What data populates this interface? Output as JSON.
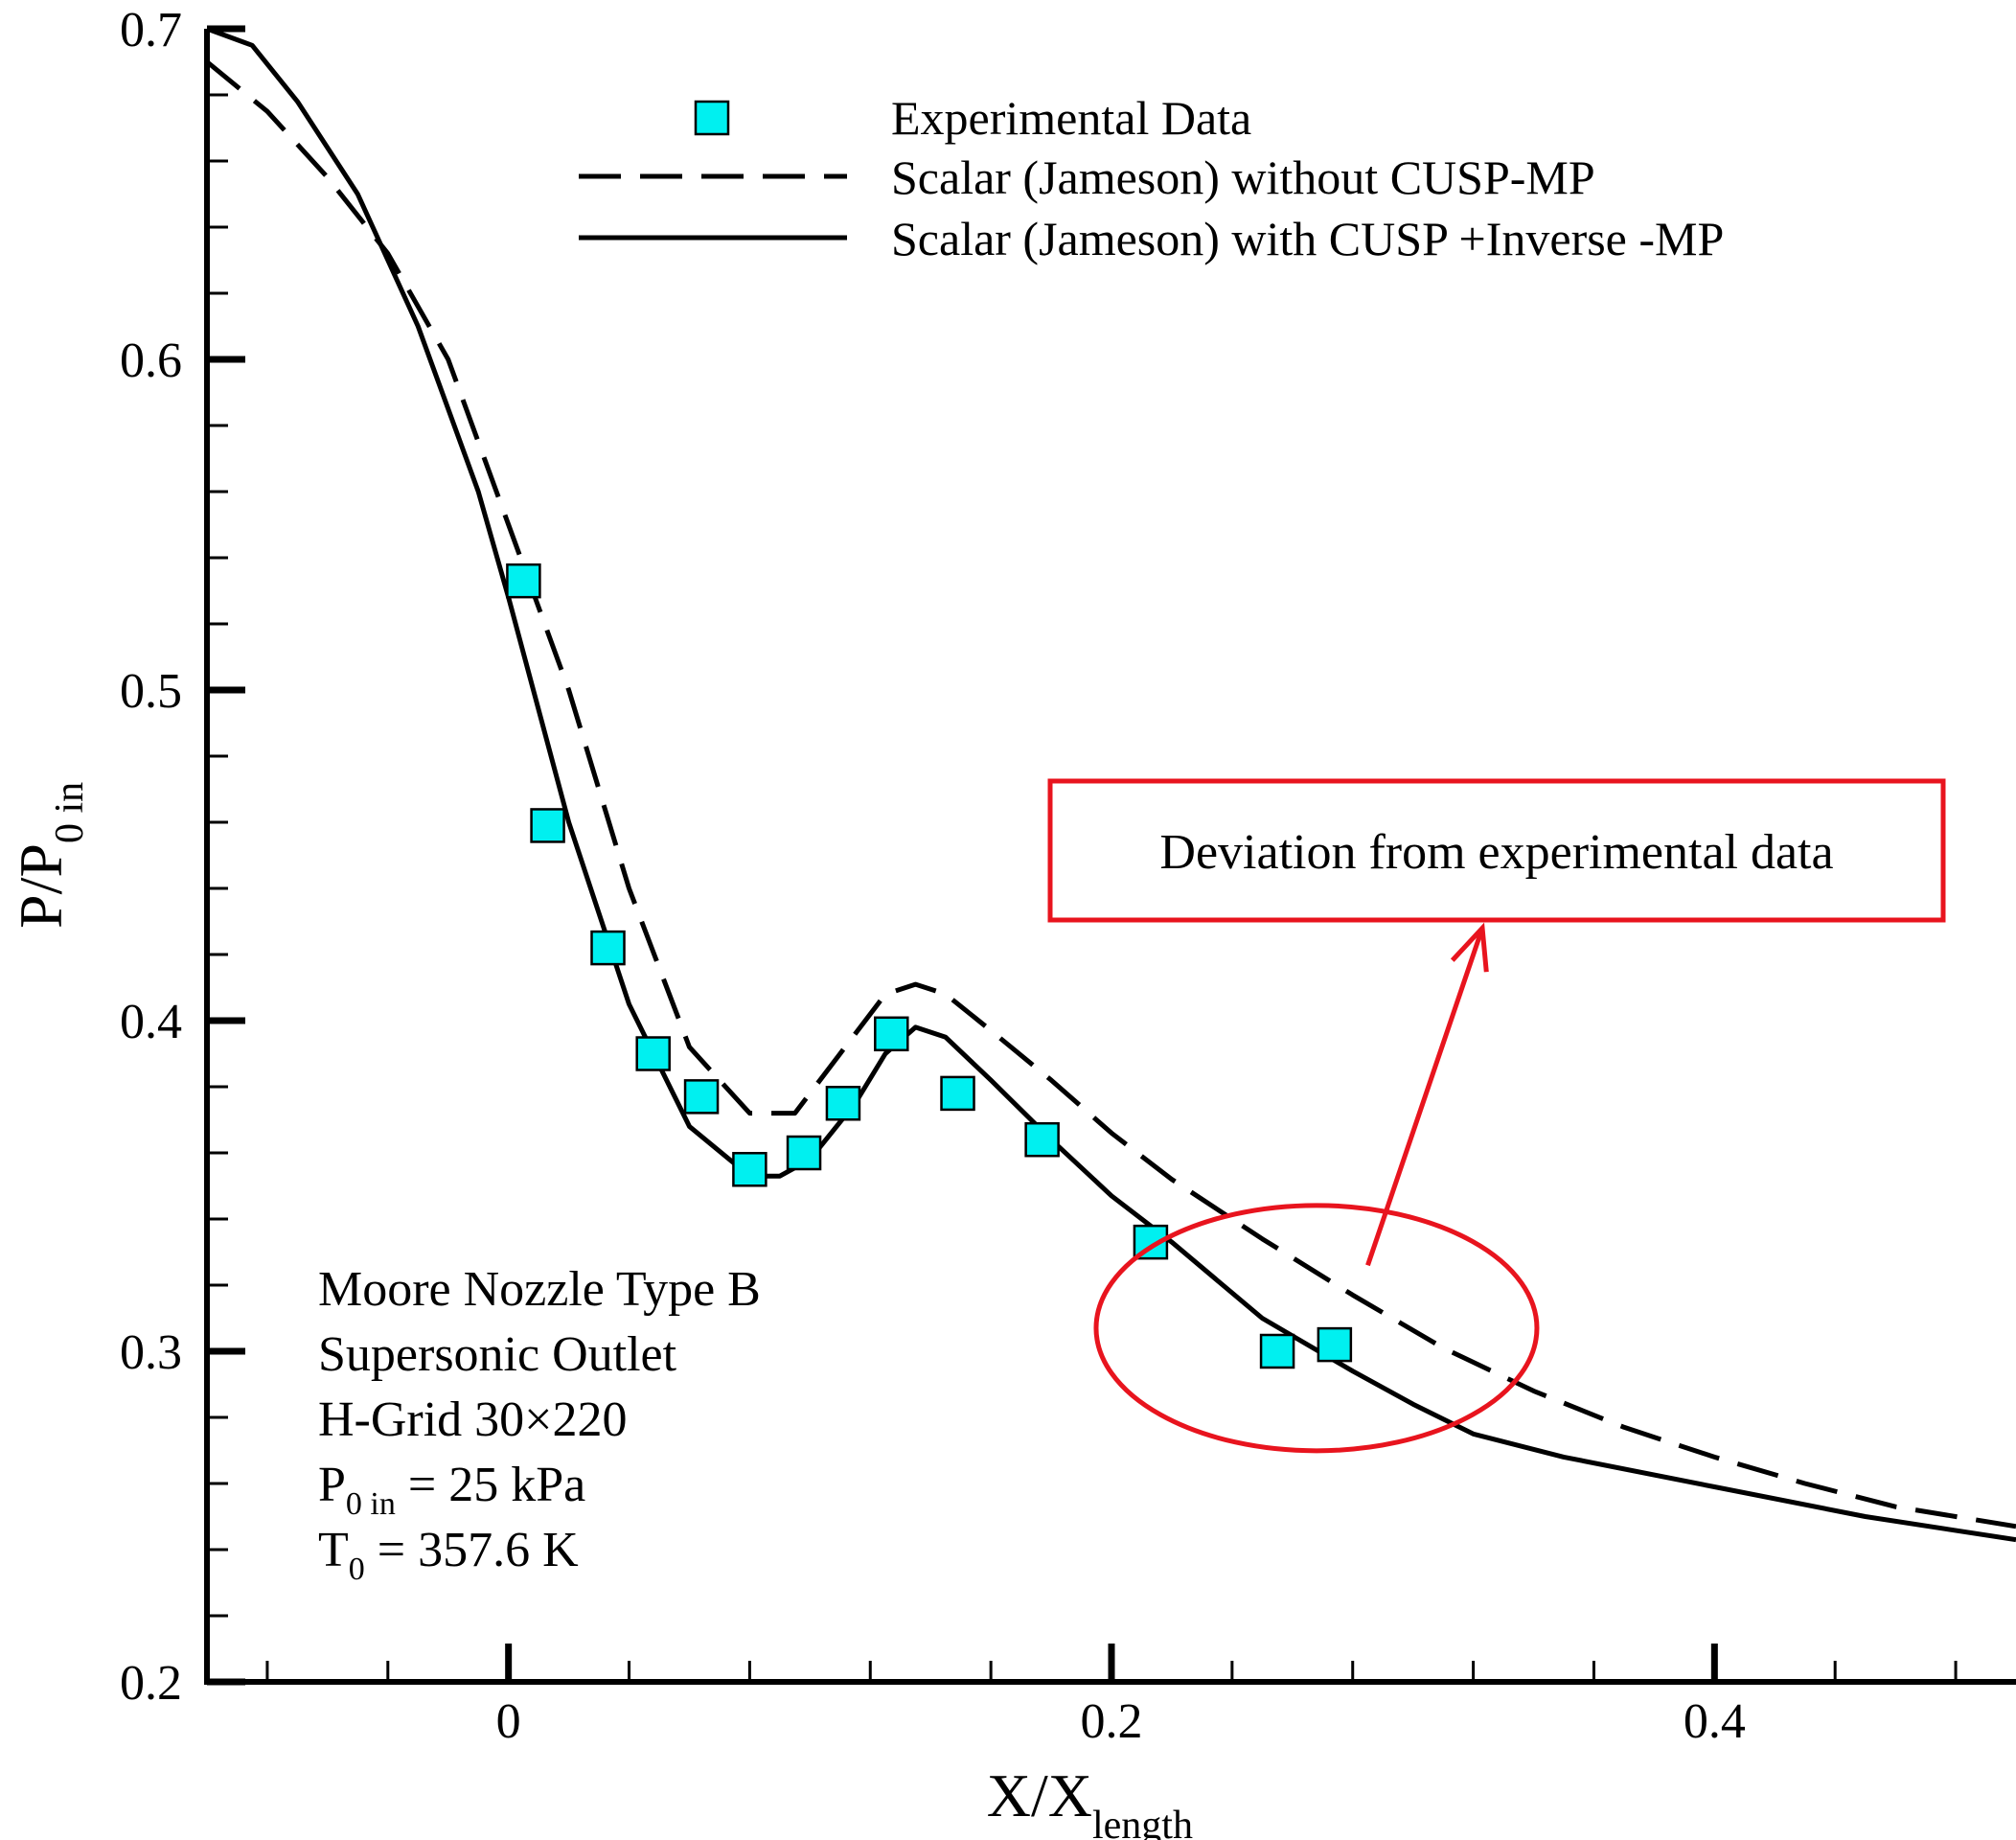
{
  "chart_data": {
    "type": "line",
    "title": "",
    "xlabel": {
      "main": "X/X",
      "sub": "length"
    },
    "ylabel": {
      "main": "P/P",
      "sub": "0 in"
    },
    "xlim": [
      -0.1,
      0.5
    ],
    "ylim": [
      0.2,
      0.7
    ],
    "xticks": [
      0,
      0.2,
      0.4
    ],
    "xtick_labels": [
      "0",
      "0.2",
      "0.4"
    ],
    "yticks": [
      0.2,
      0.3,
      0.4,
      0.5,
      0.6,
      0.7
    ],
    "ytick_labels": [
      "0.2",
      "0.3",
      "0.4",
      "0.5",
      "0.6",
      "0.7"
    ],
    "x_minor_step": 0.04,
    "y_minor_step": 0.02,
    "grid": false,
    "legend_position": "top-right",
    "series": [
      {
        "name": "Experimental Data",
        "style": "square-marker",
        "color": "#00f0f0",
        "x": [
          0.005,
          0.013,
          0.033,
          0.048,
          0.064,
          0.08,
          0.098,
          0.111,
          0.127,
          0.149,
          0.177,
          0.213,
          0.255,
          0.274
        ],
        "y": [
          0.533,
          0.459,
          0.422,
          0.39,
          0.377,
          0.355,
          0.36,
          0.375,
          0.396,
          0.378,
          0.364,
          0.333,
          0.3,
          0.302
        ]
      },
      {
        "name": "Scalar (Jameson) without CUSP-MP",
        "style": "dashed",
        "color": "#000000",
        "x": [
          -0.1,
          -0.08,
          -0.06,
          -0.04,
          -0.02,
          0,
          0.02,
          0.04,
          0.06,
          0.08,
          0.095,
          0.11,
          0.125,
          0.135,
          0.145,
          0.16,
          0.18,
          0.2,
          0.22,
          0.25,
          0.28,
          0.31,
          0.34,
          0.37,
          0.4,
          0.43,
          0.46,
          0.5
        ],
        "y": [
          0.69,
          0.675,
          0.655,
          0.632,
          0.6,
          0.55,
          0.5,
          0.44,
          0.392,
          0.372,
          0.372,
          0.39,
          0.408,
          0.411,
          0.408,
          0.397,
          0.382,
          0.366,
          0.352,
          0.334,
          0.317,
          0.301,
          0.288,
          0.277,
          0.268,
          0.26,
          0.253,
          0.247
        ]
      },
      {
        "name": "Scalar (Jameson) with CUSP +Inverse -MP",
        "style": "solid",
        "color": "#000000",
        "x": [
          -0.1,
          -0.085,
          -0.07,
          -0.05,
          -0.03,
          -0.01,
          0,
          0.02,
          0.04,
          0.06,
          0.08,
          0.09,
          0.1,
          0.115,
          0.125,
          0.135,
          0.145,
          0.16,
          0.18,
          0.2,
          0.22,
          0.25,
          0.28,
          0.3,
          0.32,
          0.35,
          0.4,
          0.45,
          0.5
        ],
        "y": [
          0.7,
          0.695,
          0.678,
          0.65,
          0.61,
          0.56,
          0.528,
          0.46,
          0.405,
          0.368,
          0.353,
          0.353,
          0.358,
          0.375,
          0.39,
          0.398,
          0.395,
          0.382,
          0.364,
          0.347,
          0.333,
          0.31,
          0.294,
          0.284,
          0.275,
          0.268,
          0.259,
          0.25,
          0.243
        ]
      }
    ],
    "annotations": {
      "box_text": "Deviation from experimental data",
      "highlight_color": "#e8141e",
      "ellipse_center": [
        0.268,
        0.307
      ],
      "arrow_from": [
        0.285,
        0.326
      ],
      "arrow_to": [
        0.323,
        0.428
      ],
      "info_lines": [
        {
          "pre": "Moore Nozzle Type B"
        },
        {
          "pre": "Supersonic Outlet"
        },
        {
          "pre": "H-Grid 30×220"
        },
        {
          "pre": "P",
          "sub": "0 in",
          "post": " = 25 kPa"
        },
        {
          "pre": "T",
          "sub": "0",
          "post": " = 357.6 K"
        }
      ]
    }
  }
}
